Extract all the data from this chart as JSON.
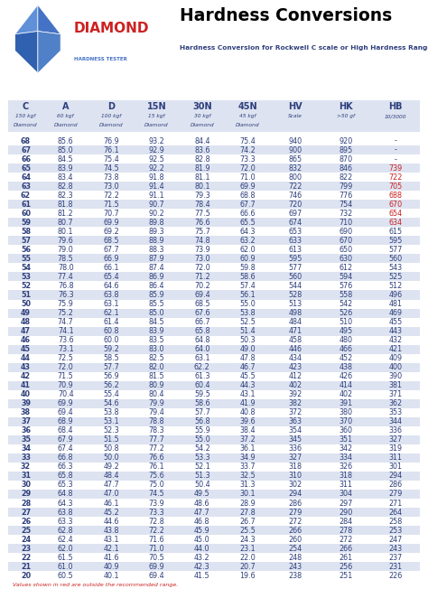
{
  "title": "Hardness Conversions",
  "subtitle": "Hardness Conversion for Rockwell C scale or High Hardness Range",
  "columns": [
    "C",
    "A",
    "D",
    "15N",
    "30N",
    "45N",
    "HV",
    "HK",
    "HB"
  ],
  "header_sub": [
    "150 kgf\nDiamond",
    "60 kgf\nDiamond",
    "100 kgf\nDiamond",
    "15 kgf\nDiamond",
    "30 kgf\nDiamond",
    "45 kgf\nDiamond",
    "Scale",
    ">50 gf",
    "10/3000"
  ],
  "rows": [
    [
      68,
      85.6,
      76.9,
      93.2,
      84.4,
      75.4,
      940,
      920,
      "-"
    ],
    [
      67,
      85.0,
      76.1,
      92.9,
      83.6,
      74.2,
      900,
      895,
      "-"
    ],
    [
      66,
      84.5,
      75.4,
      92.5,
      82.8,
      73.3,
      865,
      870,
      "-"
    ],
    [
      65,
      83.9,
      74.5,
      92.2,
      81.9,
      72.0,
      832,
      846,
      "739"
    ],
    [
      64,
      83.4,
      73.8,
      91.8,
      81.1,
      71.0,
      800,
      822,
      "722"
    ],
    [
      63,
      82.8,
      73.0,
      91.4,
      80.1,
      69.9,
      722,
      799,
      "705"
    ],
    [
      62,
      82.3,
      72.2,
      91.1,
      79.3,
      68.8,
      746,
      776,
      "688"
    ],
    [
      61,
      81.8,
      71.5,
      90.7,
      78.4,
      67.7,
      720,
      754,
      "670"
    ],
    [
      60,
      81.2,
      70.7,
      90.2,
      77.5,
      66.6,
      697,
      732,
      "654"
    ],
    [
      59,
      80.7,
      69.9,
      89.8,
      76.6,
      65.5,
      674,
      710,
      "634"
    ],
    [
      58,
      80.1,
      69.2,
      89.3,
      75.7,
      64.3,
      653,
      690,
      "615"
    ],
    [
      57,
      79.6,
      68.5,
      88.9,
      74.8,
      63.2,
      633,
      670,
      "595"
    ],
    [
      56,
      79.0,
      67.7,
      88.3,
      73.9,
      62.0,
      613,
      650,
      "577"
    ],
    [
      55,
      78.5,
      66.9,
      87.9,
      73.0,
      60.9,
      595,
      630,
      "560"
    ],
    [
      54,
      78.0,
      66.1,
      87.4,
      72.0,
      59.8,
      577,
      612,
      "543"
    ],
    [
      53,
      77.4,
      65.4,
      86.9,
      71.2,
      58.6,
      560,
      594,
      "525"
    ],
    [
      52,
      76.8,
      64.6,
      86.4,
      70.2,
      57.4,
      544,
      576,
      "512"
    ],
    [
      51,
      76.3,
      63.8,
      85.9,
      69.4,
      56.1,
      528,
      558,
      "496"
    ],
    [
      50,
      75.9,
      63.1,
      85.5,
      68.5,
      55.0,
      513,
      542,
      "481"
    ],
    [
      49,
      75.2,
      62.1,
      85.0,
      67.6,
      53.8,
      498,
      526,
      "469"
    ],
    [
      48,
      74.7,
      61.4,
      84.5,
      66.7,
      52.5,
      484,
      510,
      "455"
    ],
    [
      47,
      74.1,
      60.8,
      83.9,
      65.8,
      51.4,
      471,
      495,
      "443"
    ],
    [
      46,
      73.6,
      60.0,
      83.5,
      64.8,
      50.3,
      458,
      480,
      "432"
    ],
    [
      45,
      73.1,
      59.2,
      83.0,
      64.0,
      49.0,
      446,
      466,
      "421"
    ],
    [
      44,
      72.5,
      58.5,
      82.5,
      63.1,
      47.8,
      434,
      452,
      "409"
    ],
    [
      43,
      72.0,
      57.7,
      82.0,
      62.2,
      46.7,
      423,
      438,
      "400"
    ],
    [
      42,
      71.5,
      56.9,
      81.5,
      61.3,
      45.5,
      412,
      426,
      "390"
    ],
    [
      41,
      70.9,
      56.2,
      80.9,
      60.4,
      44.3,
      402,
      414,
      "381"
    ],
    [
      40,
      70.4,
      55.4,
      80.4,
      59.5,
      43.1,
      392,
      402,
      "371"
    ],
    [
      39,
      69.9,
      54.6,
      79.9,
      58.6,
      41.9,
      382,
      391,
      "362"
    ],
    [
      38,
      69.4,
      53.8,
      79.4,
      57.7,
      40.8,
      372,
      380,
      "353"
    ],
    [
      37,
      68.9,
      53.1,
      78.8,
      56.8,
      39.6,
      363,
      370,
      "344"
    ],
    [
      36,
      68.4,
      52.3,
      78.3,
      55.9,
      38.4,
      354,
      360,
      "336"
    ],
    [
      35,
      67.9,
      51.5,
      77.7,
      55.0,
      37.2,
      345,
      351,
      "327"
    ],
    [
      34,
      67.4,
      50.8,
      77.2,
      54.2,
      36.1,
      336,
      342,
      "319"
    ],
    [
      33,
      66.8,
      50.0,
      76.6,
      53.3,
      34.9,
      327,
      334,
      "311"
    ],
    [
      32,
      66.3,
      49.2,
      76.1,
      52.1,
      33.7,
      318,
      326,
      "301"
    ],
    [
      31,
      65.8,
      48.4,
      75.6,
      51.3,
      32.5,
      310,
      318,
      "294"
    ],
    [
      30,
      65.3,
      47.7,
      75.0,
      50.4,
      31.3,
      302,
      311,
      "286"
    ],
    [
      29,
      64.8,
      47.0,
      74.5,
      49.5,
      30.1,
      294,
      304,
      "279"
    ],
    [
      28,
      64.3,
      46.1,
      73.9,
      48.6,
      28.9,
      286,
      297,
      "271"
    ],
    [
      27,
      63.8,
      45.2,
      73.3,
      47.7,
      27.8,
      279,
      290,
      "264"
    ],
    [
      26,
      63.3,
      44.6,
      72.8,
      46.8,
      26.7,
      272,
      284,
      "258"
    ],
    [
      25,
      62.8,
      43.8,
      72.2,
      45.9,
      25.5,
      266,
      278,
      "253"
    ],
    [
      24,
      62.4,
      43.1,
      71.6,
      45.0,
      24.3,
      260,
      272,
      "247"
    ],
    [
      23,
      62.0,
      42.1,
      71.0,
      44.0,
      23.1,
      254,
      266,
      "243"
    ],
    [
      22,
      61.5,
      41.6,
      70.5,
      43.2,
      22.0,
      248,
      261,
      "237"
    ],
    [
      21,
      61.0,
      40.9,
      69.9,
      42.3,
      20.7,
      243,
      256,
      "231"
    ],
    [
      20,
      60.5,
      40.1,
      69.4,
      41.5,
      19.6,
      238,
      251,
      "226"
    ]
  ],
  "red_hb_rows": [
    3,
    4,
    5,
    6,
    7,
    8,
    9
  ],
  "footer": "Values shown in red are outside the recommended range.",
  "bg_color_odd": "#dde3f0",
  "bg_color_even": "#ffffff",
  "text_color_normal": "#2e3f7c",
  "text_color_red": "#cc2222",
  "header_text_color": "#2e3f7c",
  "logo_diamond_color": "#4472c4",
  "logo_text_color": "#cc2222",
  "logo_sub_color": "#4472c4"
}
